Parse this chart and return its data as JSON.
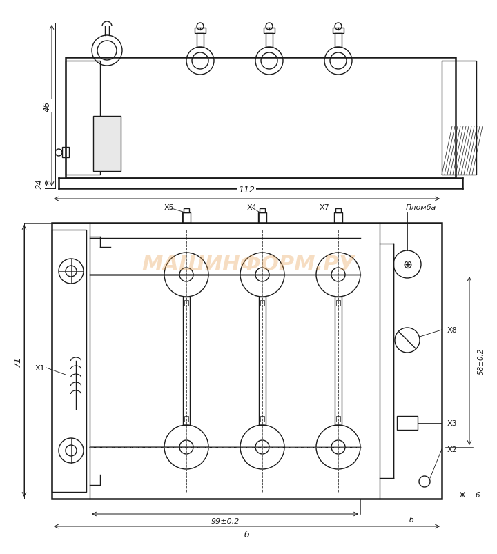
{
  "bg_color": "#ffffff",
  "line_color": "#1a1a1a",
  "line_width": 1.0,
  "thin_line": 0.5,
  "thick_line": 1.8,
  "watermark_text": "МАШИНФОРМ.РУ",
  "watermark_color": "#e8a050",
  "watermark_alpha": 0.35,
  "dim_labels": {
    "top_46": "46",
    "top_24": "24",
    "bottom_112": "112",
    "bottom_71": "71",
    "bottom_58": "58±0,2",
    "bottom_99": "99±0,2",
    "bottom_b1": "б",
    "bottom_b2": "б",
    "bottom_6": "6"
  },
  "connector_labels": {
    "X1": "Х1",
    "X2": "Х2",
    "X3": "Х3",
    "X4": "Х4",
    "X5": "Х5",
    "X7": "Х7",
    "X8": "Х8",
    "Plomba": "Пломба"
  }
}
